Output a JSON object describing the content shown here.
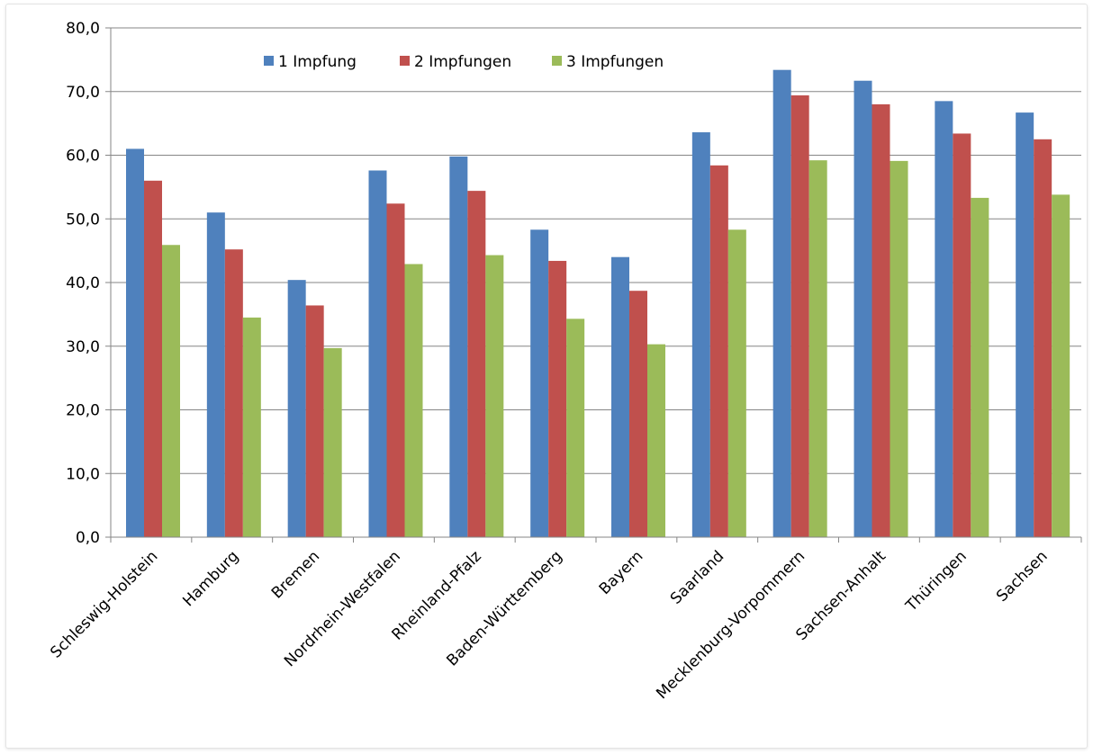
{
  "chart_data": {
    "type": "bar",
    "title": "",
    "xlabel": "",
    "ylabel": "",
    "ylim": [
      0,
      80
    ],
    "yticks": [
      "0,0",
      "10,0",
      "20,0",
      "30,0",
      "40,0",
      "50,0",
      "60,0",
      "70,0",
      "80,0"
    ],
    "grid": true,
    "legend_position": "top",
    "categories": [
      "Schleswig-Holstein",
      "Hamburg",
      "Bremen",
      "Nordrhein-Westfalen",
      "Rheinland-Pfalz",
      "Baden-Württemberg",
      "Bayern",
      "Saarland",
      "Mecklenburg-Vorpommern",
      "Sachsen-Anhalt",
      "Thüringen",
      "Sachsen"
    ],
    "series": [
      {
        "name": "1 Impfung",
        "color": "#4f81bd",
        "values": [
          61.0,
          51.0,
          40.4,
          57.6,
          59.8,
          48.3,
          44.0,
          63.6,
          73.4,
          71.7,
          68.5,
          66.7
        ]
      },
      {
        "name": "2 Impfungen",
        "color": "#c0504d",
        "values": [
          56.0,
          45.2,
          36.4,
          52.4,
          54.4,
          43.4,
          38.7,
          58.4,
          69.4,
          68.0,
          63.4,
          62.5
        ]
      },
      {
        "name": "3 Impfungen",
        "color": "#9bbb59",
        "values": [
          45.9,
          34.5,
          29.7,
          42.9,
          44.3,
          34.3,
          30.3,
          48.3,
          59.2,
          59.1,
          53.3,
          53.8
        ]
      }
    ]
  }
}
